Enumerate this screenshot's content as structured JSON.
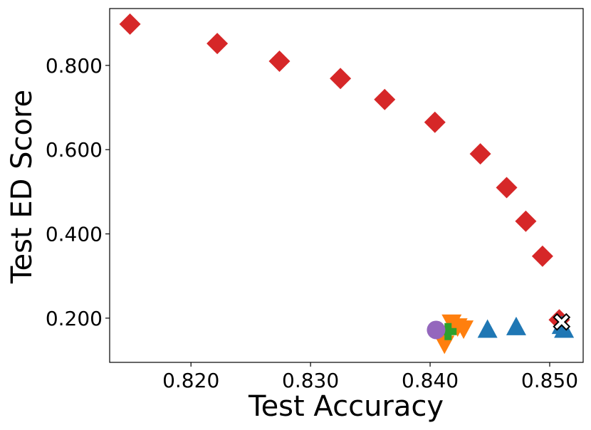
{
  "chart_data": {
    "type": "scatter",
    "xlabel": "Test Accuracy",
    "ylabel": "Test ED Score",
    "xlim": [
      0.8132,
      0.8528
    ],
    "ylim": [
      0.095,
      0.935
    ],
    "x_ticks": [
      "0.820",
      "0.830",
      "0.840",
      "0.850"
    ],
    "y_ticks": [
      "0.200",
      "0.400",
      "0.600",
      "0.800"
    ],
    "grid": false,
    "series": [
      {
        "marker": "diamond",
        "color": "#d62728",
        "points": [
          {
            "x": 0.8149,
            "y": 0.898
          },
          {
            "x": 0.8222,
            "y": 0.852
          },
          {
            "x": 0.8274,
            "y": 0.81
          },
          {
            "x": 0.8325,
            "y": 0.769
          },
          {
            "x": 0.8362,
            "y": 0.719
          },
          {
            "x": 0.8404,
            "y": 0.665
          },
          {
            "x": 0.8442,
            "y": 0.59
          },
          {
            "x": 0.8464,
            "y": 0.51
          },
          {
            "x": 0.848,
            "y": 0.43
          },
          {
            "x": 0.8494,
            "y": 0.347
          },
          {
            "x": 0.8508,
            "y": 0.196
          }
        ]
      },
      {
        "marker": "triangle-up",
        "color": "#1f77b4",
        "points": [
          {
            "x": 0.8448,
            "y": 0.172
          },
          {
            "x": 0.8472,
            "y": 0.178
          },
          {
            "x": 0.851,
            "y": 0.181
          },
          {
            "x": 0.8512,
            "y": 0.172
          }
        ]
      },
      {
        "marker": "triangle-down",
        "color": "#ff7f0e",
        "points": [
          {
            "x": 0.8418,
            "y": 0.19
          },
          {
            "x": 0.8423,
            "y": 0.181
          },
          {
            "x": 0.8428,
            "y": 0.176
          },
          {
            "x": 0.8412,
            "y": 0.14
          },
          {
            "x": 0.841,
            "y": 0.16
          }
        ]
      },
      {
        "marker": "plus",
        "color": "#2ca02c",
        "points": [
          {
            "x": 0.8415,
            "y": 0.168
          }
        ]
      },
      {
        "marker": "circle",
        "color": "#9467bd",
        "points": [
          {
            "x": 0.8405,
            "y": 0.172
          }
        ]
      },
      {
        "marker": "x-filled",
        "color": "#ffffff",
        "points": [
          {
            "x": 0.851,
            "y": 0.191
          }
        ]
      }
    ]
  }
}
